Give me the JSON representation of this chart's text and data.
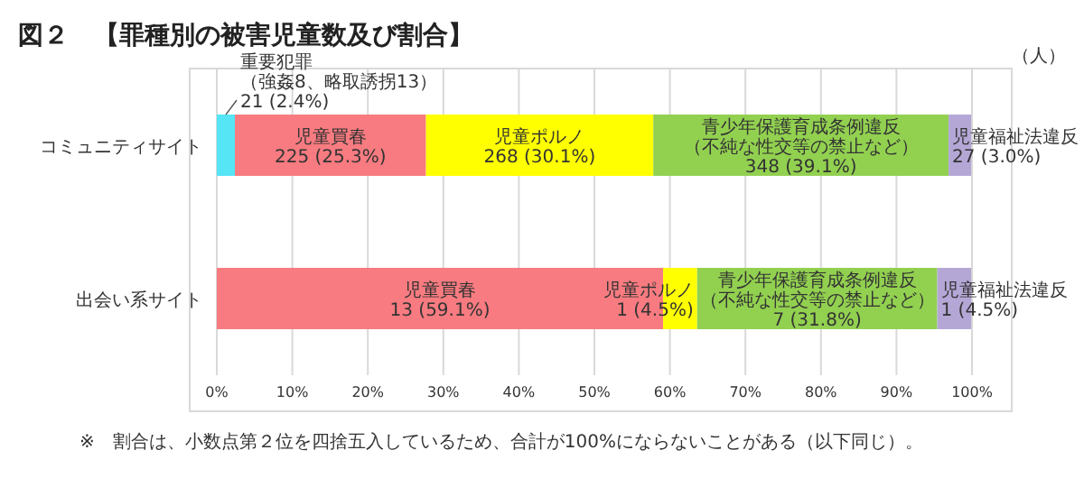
{
  "chart_data": {
    "type": "bar",
    "orientation": "horizontal",
    "stacked": true,
    "title": "図２　【罪種別の被害児童数及び割合】",
    "categories": [
      "コミュニティサイト",
      "出会い系サイト"
    ],
    "series": [
      {
        "name": "重要犯罪（強姦8、略取誘拐13）",
        "color": "#55e5f5",
        "values": [
          2.4,
          0
        ],
        "value_labels": [
          "21 (2.4%)",
          null
        ]
      },
      {
        "name": "児童買春",
        "color": "#f77b80",
        "values": [
          25.3,
          59.1
        ],
        "value_labels": [
          "225 (25.3%)",
          "13 (59.1%)"
        ]
      },
      {
        "name": "児童ポルノ",
        "color": "#ffff00",
        "values": [
          30.1,
          4.5
        ],
        "value_labels": [
          "268 (30.1%)",
          "1 (4.5%)"
        ]
      },
      {
        "name": "青少年保護育成条例違反（不純な性交等の禁止など）",
        "color": "#92d050",
        "values": [
          39.1,
          31.8
        ],
        "value_labels": [
          "348 (39.1%)",
          "7 (31.8%)"
        ]
      },
      {
        "name": "児童福祉法違反",
        "color": "#b4a7d6",
        "values": [
          3.0,
          4.5
        ],
        "value_labels": [
          "27 (3.0%)",
          "1 (4.5%)"
        ]
      }
    ],
    "xlim": [
      0,
      100
    ],
    "xticks": [
      {
        "value": 0,
        "label": "0%"
      },
      {
        "value": 10,
        "label": "10%"
      },
      {
        "value": 20,
        "label": "20%"
      },
      {
        "value": 30,
        "label": "30%"
      },
      {
        "value": 40,
        "label": "40%"
      },
      {
        "value": 50,
        "label": "50%"
      },
      {
        "value": 60,
        "label": "60%"
      },
      {
        "value": 70,
        "label": "70%"
      },
      {
        "value": 80,
        "label": "80%"
      },
      {
        "value": 90,
        "label": "90%"
      },
      {
        "value": 100,
        "label": "100%"
      }
    ],
    "grid": "x",
    "annotations": [
      "（人）",
      "※　割合は、小数点第２位を四捨五入しているため、合計が100%にならないことがある（以下同じ）。"
    ]
  }
}
